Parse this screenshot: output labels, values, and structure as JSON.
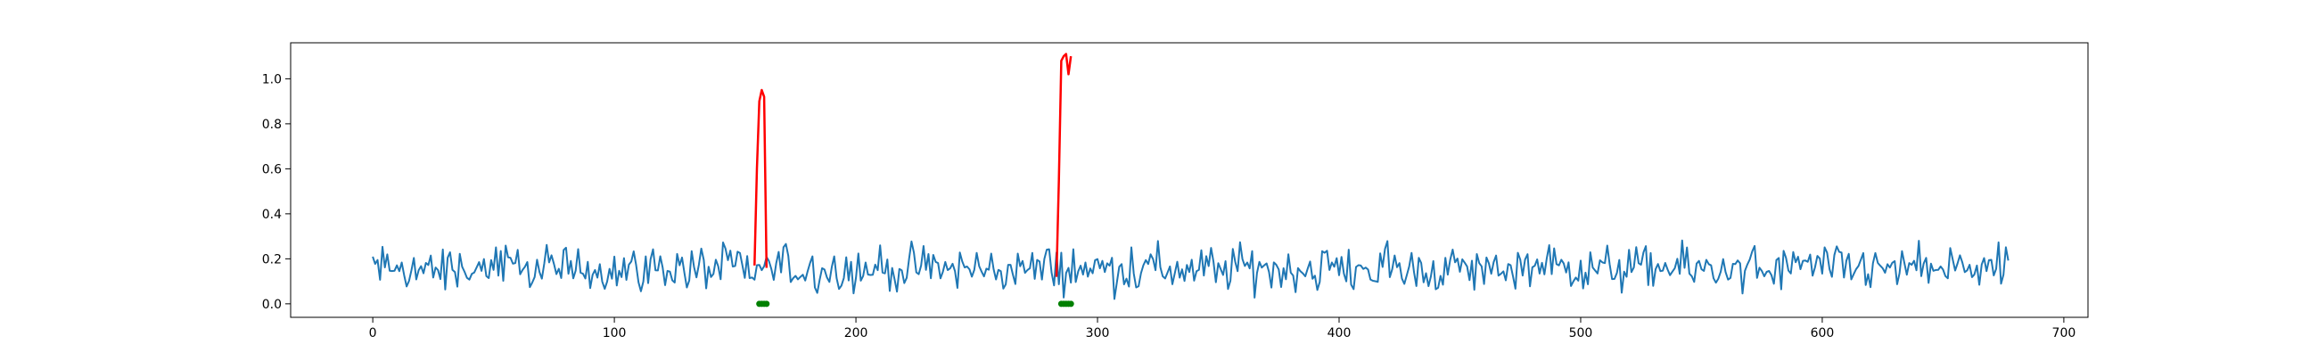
{
  "chart_data": {
    "type": "line",
    "title": "",
    "xlabel": "",
    "ylabel": "",
    "xlim": [
      -34,
      710
    ],
    "ylim": [
      -0.06,
      1.16
    ],
    "xticks": [
      0,
      100,
      200,
      300,
      400,
      500,
      600,
      700
    ],
    "yticks": [
      0.0,
      0.2,
      0.4,
      0.6,
      0.8,
      1.0
    ],
    "xtick_labels": [
      "0",
      "100",
      "200",
      "300",
      "400",
      "500",
      "600",
      "700"
    ],
    "ytick_labels": [
      "0.0",
      "0.2",
      "0.4",
      "0.6",
      "0.8",
      "1.0"
    ],
    "grid": false,
    "legend": "none",
    "colors": {
      "signal": "#1f77b4",
      "anomaly": "#ff0000",
      "marker": "#008000"
    },
    "signal": {
      "x_start": 0,
      "x_end": 677,
      "y_mean": 0.155,
      "y_amplitude": 0.07,
      "y_min": 0.0,
      "y_max": 0.3
    },
    "anomalies": [
      {
        "x": [
          158,
          159,
          160,
          161,
          162,
          163
        ],
        "y": [
          0.17,
          0.6,
          0.9,
          0.95,
          0.92,
          0.16
        ]
      },
      {
        "x": [
          283,
          284,
          285,
          286,
          287,
          288,
          289
        ],
        "y": [
          0.12,
          0.55,
          1.08,
          1.1,
          1.11,
          1.02,
          1.1
        ]
      }
    ],
    "markers": [
      {
        "x": [
          160,
          161,
          162,
          163
        ],
        "y": [
          0.0,
          0.0,
          0.0,
          0.0
        ]
      },
      {
        "x": [
          285,
          286,
          287,
          288,
          289
        ],
        "y": [
          0.0,
          0.0,
          0.0,
          0.0,
          0.0
        ]
      }
    ]
  }
}
